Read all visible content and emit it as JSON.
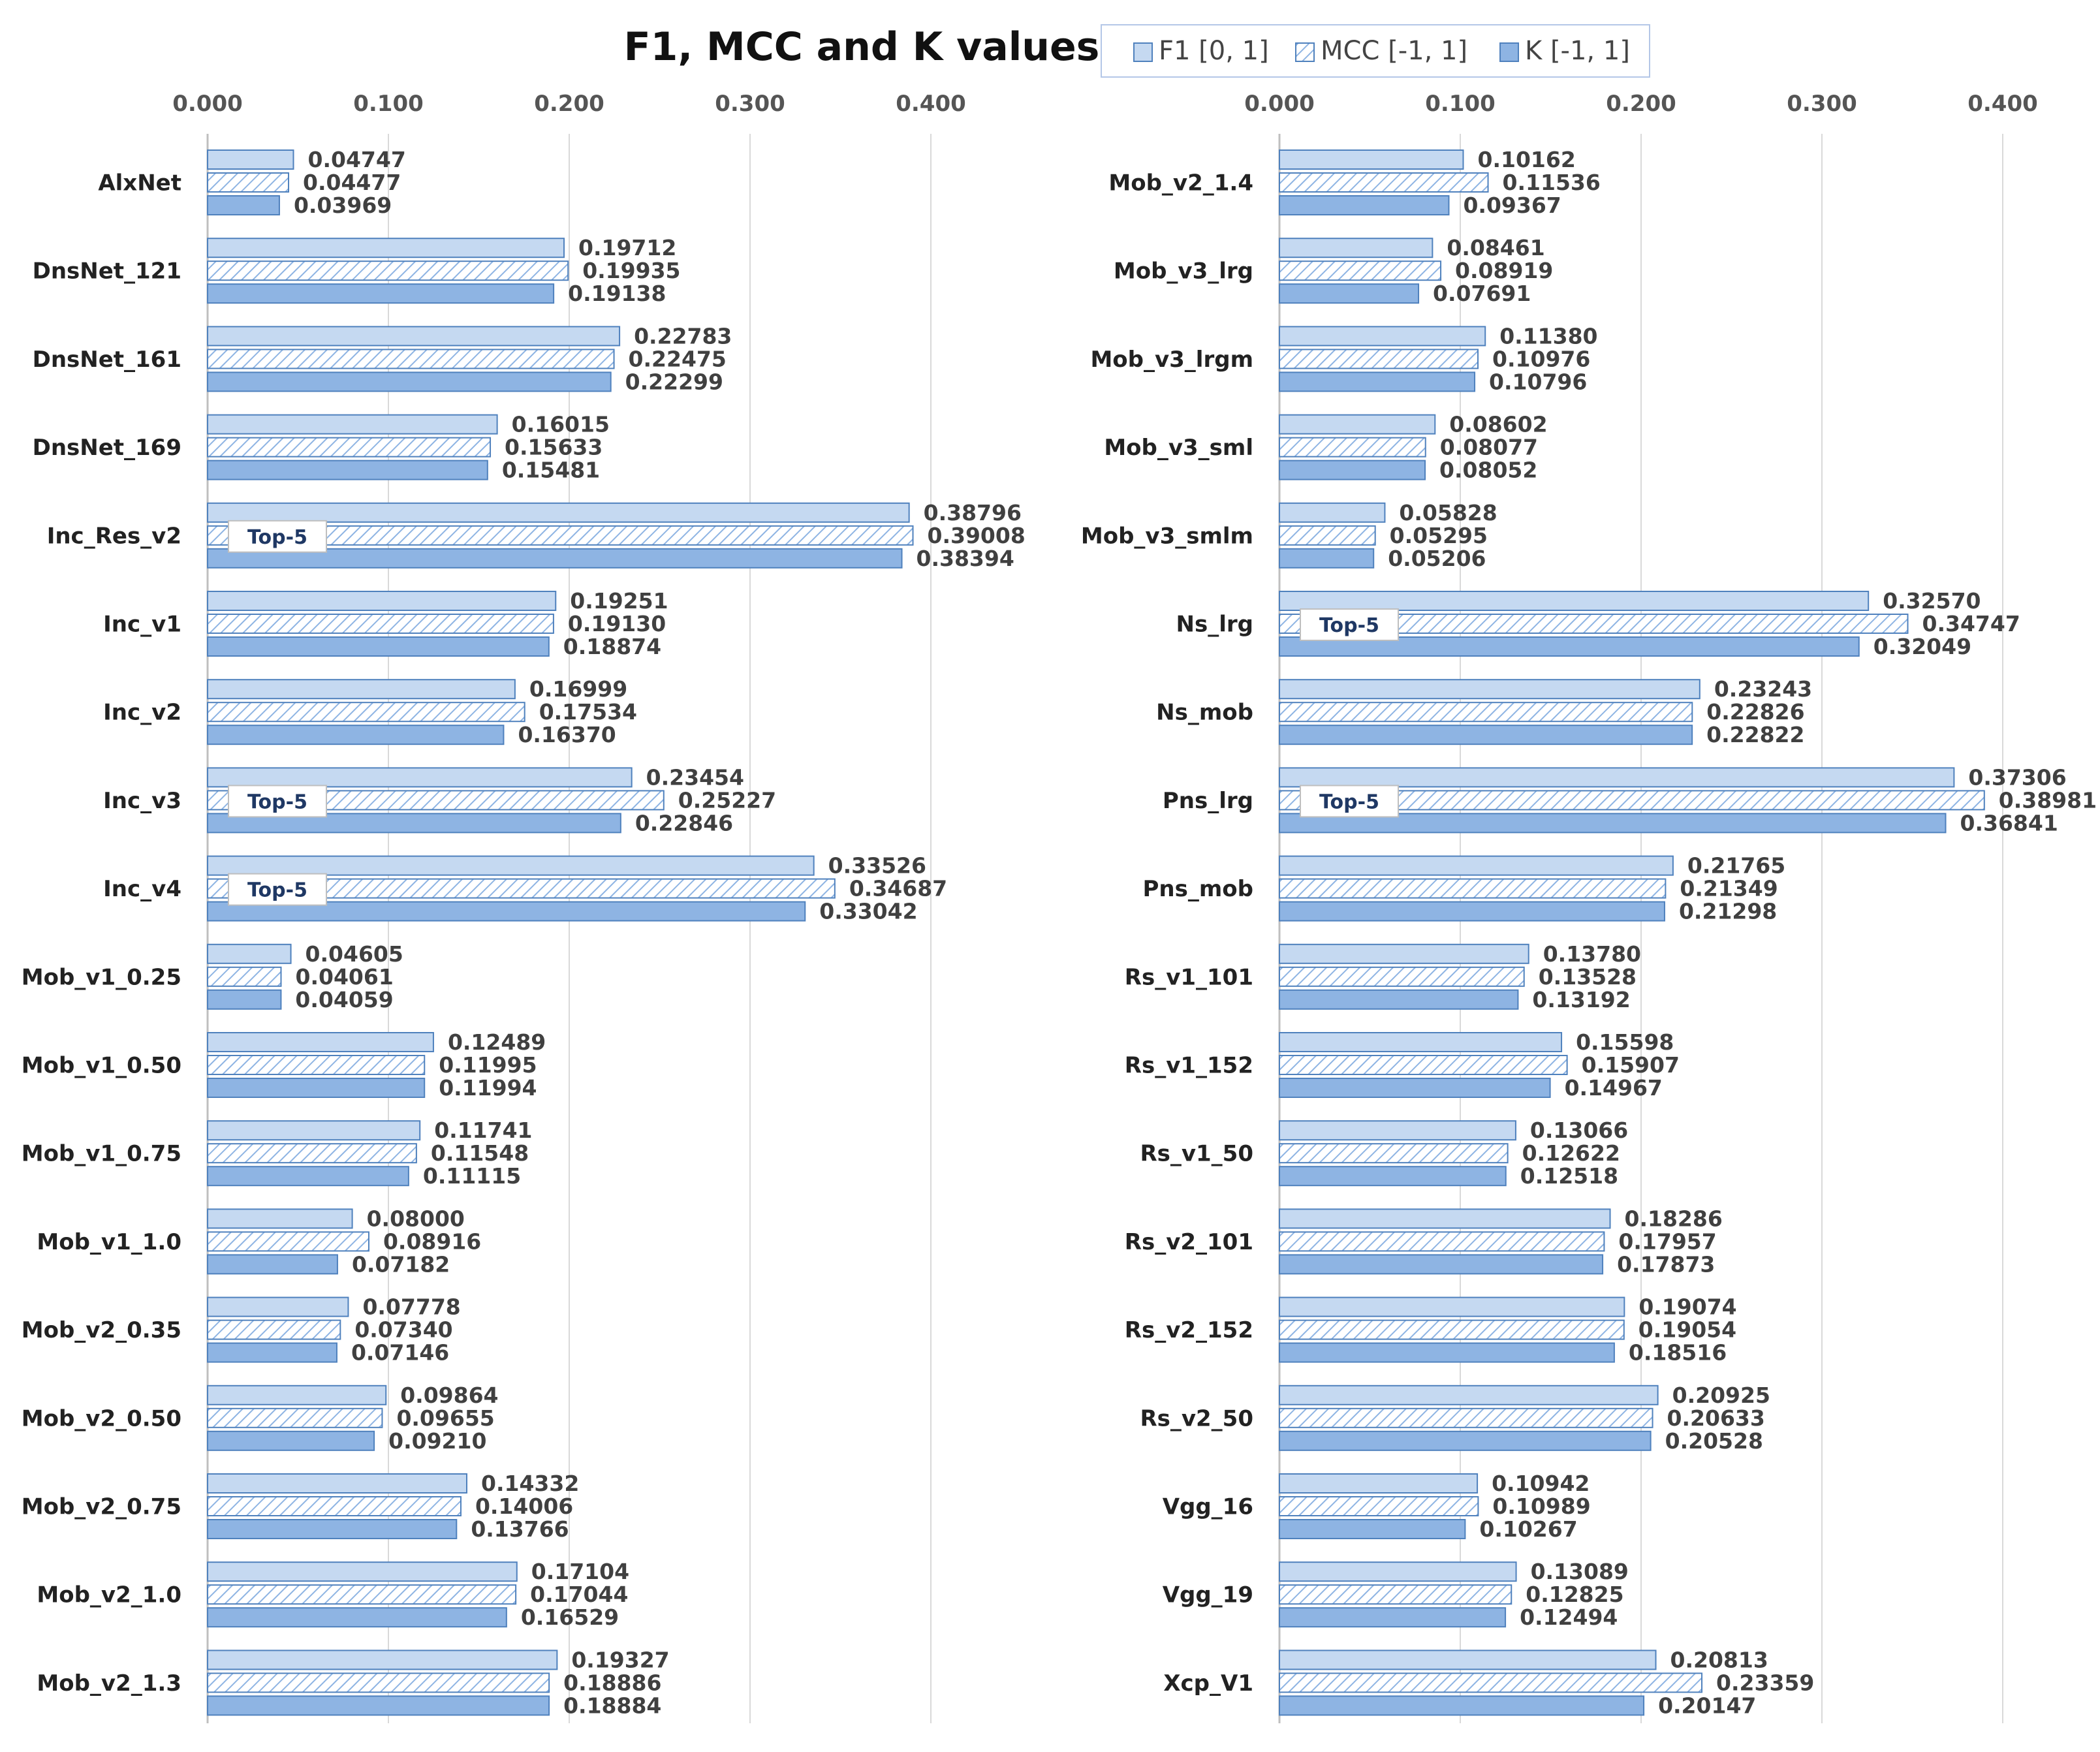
{
  "chart_data": {
    "type": "bar",
    "orientation": "horizontal",
    "title": "F1, MCC and K values",
    "legend": [
      {
        "name": "F1 [0, 1]",
        "style": "light-fill",
        "color": "#c5d9f1"
      },
      {
        "name": "MCC [-1, 1]",
        "style": "hatched",
        "color": "#8eb4e3"
      },
      {
        "name": "K [-1, 1]",
        "style": "solid-fill",
        "color": "#8eb4e3"
      }
    ],
    "xlim": [
      0,
      0.4
    ],
    "xticks": [
      "0.000",
      "0.100",
      "0.200",
      "0.300",
      "0.400"
    ],
    "highlight_label": "Top-5",
    "colors": {
      "f1_fill": "#c5d9f1",
      "mcc_line": "#8eb4e3",
      "k_fill": "#8eb4e3",
      "border": "#4f81bd",
      "grid": "#d9d9d9"
    },
    "panels": [
      {
        "rows": [
          {
            "label": "AlxNet",
            "f1": 0.04747,
            "mcc": 0.04477,
            "k": 0.03969,
            "top5": false,
            "f1_text": "0.04747",
            "mcc_text": "0.04477",
            "k_text": "0.03969"
          },
          {
            "label": "DnsNet_121",
            "f1": 0.19712,
            "mcc": 0.19935,
            "k": 0.19138,
            "top5": false,
            "f1_text": "0.19712",
            "mcc_text": "0.19935",
            "k_text": "0.19138"
          },
          {
            "label": "DnsNet_161",
            "f1": 0.22783,
            "mcc": 0.22475,
            "k": 0.22299,
            "top5": false,
            "f1_text": "0.22783",
            "mcc_text": "0.22475",
            "k_text": "0.22299"
          },
          {
            "label": "DnsNet_169",
            "f1": 0.16015,
            "mcc": 0.15633,
            "k": 0.15481,
            "top5": false,
            "f1_text": "0.16015",
            "mcc_text": "0.15633",
            "k_text": "0.15481"
          },
          {
            "label": "Inc_Res_v2",
            "f1": 0.38796,
            "mcc": 0.39008,
            "k": 0.38394,
            "top5": true,
            "f1_text": "0.38796",
            "mcc_text": "0.39008",
            "k_text": "0.38394"
          },
          {
            "label": "Inc_v1",
            "f1": 0.19251,
            "mcc": 0.1913,
            "k": 0.18874,
            "top5": false,
            "f1_text": "0.19251",
            "mcc_text": "0.19130",
            "k_text": "0.18874"
          },
          {
            "label": "Inc_v2",
            "f1": 0.16999,
            "mcc": 0.17534,
            "k": 0.1637,
            "top5": false,
            "f1_text": "0.16999",
            "mcc_text": "0.17534",
            "k_text": "0.16370"
          },
          {
            "label": "Inc_v3",
            "f1": 0.23454,
            "mcc": 0.25227,
            "k": 0.22846,
            "top5": true,
            "f1_text": "0.23454",
            "mcc_text": "0.25227",
            "k_text": "0.22846"
          },
          {
            "label": "Inc_v4",
            "f1": 0.33526,
            "mcc": 0.34687,
            "k": 0.33042,
            "top5": true,
            "f1_text": "0.33526",
            "mcc_text": "0.34687",
            "k_text": "0.33042"
          },
          {
            "label": "Mob_v1_0.25",
            "f1": 0.04605,
            "mcc": 0.04061,
            "k": 0.04059,
            "top5": false,
            "f1_text": "0.04605",
            "mcc_text": "0.04061",
            "k_text": "0.04059"
          },
          {
            "label": "Mob_v1_0.50",
            "f1": 0.12489,
            "mcc": 0.11995,
            "k": 0.11994,
            "top5": false,
            "f1_text": "0.12489",
            "mcc_text": "0.11995",
            "k_text": "0.11994"
          },
          {
            "label": "Mob_v1_0.75",
            "f1": 0.11741,
            "mcc": 0.11548,
            "k": 0.11115,
            "top5": false,
            "f1_text": "0.11741",
            "mcc_text": "0.11548",
            "k_text": "0.11115"
          },
          {
            "label": "Mob_v1_1.0",
            "f1": 0.08,
            "mcc": 0.08916,
            "k": 0.07182,
            "top5": false,
            "f1_text": "0.08000",
            "mcc_text": "0.08916",
            "k_text": "0.07182"
          },
          {
            "label": "Mob_v2_0.35",
            "f1": 0.07778,
            "mcc": 0.0734,
            "k": 0.07146,
            "top5": false,
            "f1_text": "0.07778",
            "mcc_text": "0.07340",
            "k_text": "0.07146"
          },
          {
            "label": "Mob_v2_0.50",
            "f1": 0.09864,
            "mcc": 0.09655,
            "k": 0.0921,
            "top5": false,
            "f1_text": "0.09864",
            "mcc_text": "0.09655",
            "k_text": "0.09210"
          },
          {
            "label": "Mob_v2_0.75",
            "f1": 0.14332,
            "mcc": 0.14006,
            "k": 0.13766,
            "top5": false,
            "f1_text": "0.14332",
            "mcc_text": "0.14006",
            "k_text": "0.13766"
          },
          {
            "label": "Mob_v2_1.0",
            "f1": 0.17104,
            "mcc": 0.17044,
            "k": 0.16529,
            "top5": false,
            "f1_text": "0.17104",
            "mcc_text": "0.17044",
            "k_text": "0.16529"
          },
          {
            "label": "Mob_v2_1.3",
            "f1": 0.19327,
            "mcc": 0.18886,
            "k": 0.18884,
            "top5": false,
            "f1_text": "0.19327",
            "mcc_text": "0.18886",
            "k_text": "0.18884"
          }
        ]
      },
      {
        "rows": [
          {
            "label": "Mob_v2_1.4",
            "f1": 0.10162,
            "mcc": 0.11536,
            "k": 0.09367,
            "top5": false,
            "f1_text": "0.10162",
            "mcc_text": "0.11536",
            "k_text": "0.09367"
          },
          {
            "label": "Mob_v3_lrg",
            "f1": 0.08461,
            "mcc": 0.08919,
            "k": 0.07691,
            "top5": false,
            "f1_text": "0.08461",
            "mcc_text": "0.08919",
            "k_text": "0.07691"
          },
          {
            "label": "Mob_v3_lrgm",
            "f1": 0.1138,
            "mcc": 0.10976,
            "k": 0.10796,
            "top5": false,
            "f1_text": "0.11380",
            "mcc_text": "0.10976",
            "k_text": "0.10796"
          },
          {
            "label": "Mob_v3_sml",
            "f1": 0.08602,
            "mcc": 0.08077,
            "k": 0.08052,
            "top5": false,
            "f1_text": "0.08602",
            "mcc_text": "0.08077",
            "k_text": "0.08052"
          },
          {
            "label": "Mob_v3_smlm",
            "f1": 0.05828,
            "mcc": 0.05295,
            "k": 0.05206,
            "top5": false,
            "f1_text": "0.05828",
            "mcc_text": "0.05295",
            "k_text": "0.05206"
          },
          {
            "label": "Ns_lrg",
            "f1": 0.3257,
            "mcc": 0.34747,
            "k": 0.32049,
            "top5": true,
            "f1_text": "0.32570",
            "mcc_text": "0.34747",
            "k_text": "0.32049"
          },
          {
            "label": "Ns_mob",
            "f1": 0.23243,
            "mcc": 0.22826,
            "k": 0.22822,
            "top5": false,
            "f1_text": "0.23243",
            "mcc_text": "0.22826",
            "k_text": "0.22822"
          },
          {
            "label": "Pns_lrg",
            "f1": 0.37306,
            "mcc": 0.38981,
            "k": 0.36841,
            "top5": true,
            "f1_text": "0.37306",
            "mcc_text": "0.38981",
            "k_text": "0.36841"
          },
          {
            "label": "Pns_mob",
            "f1": 0.21765,
            "mcc": 0.21349,
            "k": 0.21298,
            "top5": false,
            "f1_text": "0.21765",
            "mcc_text": "0.21349",
            "k_text": "0.21298"
          },
          {
            "label": "Rs_v1_101",
            "f1": 0.1378,
            "mcc": 0.13528,
            "k": 0.13192,
            "top5": false,
            "f1_text": "0.13780",
            "mcc_text": "0.13528",
            "k_text": "0.13192"
          },
          {
            "label": "Rs_v1_152",
            "f1": 0.15598,
            "mcc": 0.15907,
            "k": 0.14967,
            "top5": false,
            "f1_text": "0.15598",
            "mcc_text": "0.15907",
            "k_text": "0.14967"
          },
          {
            "label": "Rs_v1_50",
            "f1": 0.13066,
            "mcc": 0.12622,
            "k": 0.12518,
            "top5": false,
            "f1_text": "0.13066",
            "mcc_text": "0.12622",
            "k_text": "0.12518"
          },
          {
            "label": "Rs_v2_101",
            "f1": 0.18286,
            "mcc": 0.17957,
            "k": 0.17873,
            "top5": false,
            "f1_text": "0.18286",
            "mcc_text": "0.17957",
            "k_text": "0.17873"
          },
          {
            "label": "Rs_v2_152",
            "f1": 0.19074,
            "mcc": 0.19054,
            "k": 0.18516,
            "top5": false,
            "f1_text": "0.19074",
            "mcc_text": "0.19054",
            "k_text": "0.18516"
          },
          {
            "label": "Rs_v2_50",
            "f1": 0.20925,
            "mcc": 0.20633,
            "k": 0.20528,
            "top5": false,
            "f1_text": "0.20925",
            "mcc_text": "0.20633",
            "k_text": "0.20528"
          },
          {
            "label": "Vgg_16",
            "f1": 0.10942,
            "mcc": 0.10989,
            "k": 0.10267,
            "top5": false,
            "f1_text": "0.10942",
            "mcc_text": "0.10989",
            "k_text": "0.10267"
          },
          {
            "label": "Vgg_19",
            "f1": 0.13089,
            "mcc": 0.12825,
            "k": 0.12494,
            "top5": false,
            "f1_text": "0.13089",
            "mcc_text": "0.12825",
            "k_text": "0.12494"
          },
          {
            "label": "Xcp_V1",
            "f1": 0.20813,
            "mcc": 0.23359,
            "k": 0.20147,
            "top5": false,
            "f1_text": "0.20813",
            "mcc_text": "0.23359",
            "k_text": "0.20147"
          }
        ]
      }
    ]
  }
}
